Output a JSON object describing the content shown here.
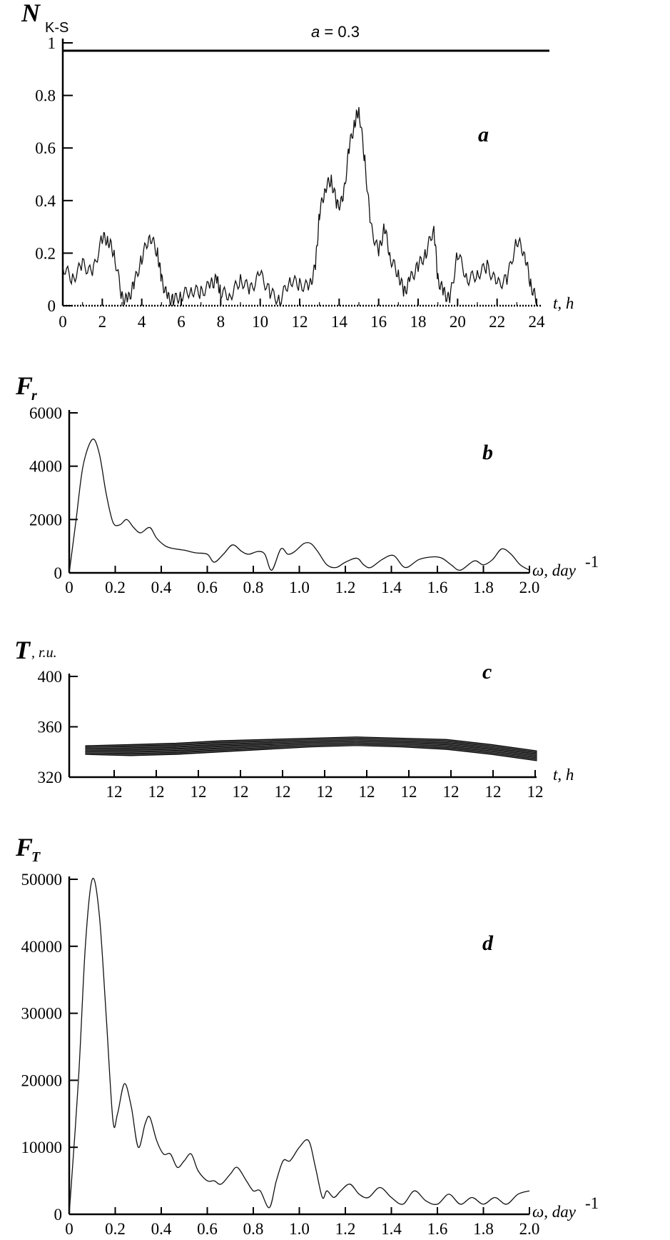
{
  "chart_data": [
    {
      "panel": "a",
      "type": "line",
      "ylabel": "N",
      "ylabel_sub": "K-S",
      "xlabel": "t, h",
      "annotation": "a = 0.3",
      "annotation_value": 0.97,
      "xlim": [
        0,
        24
      ],
      "ylim": [
        0,
        1
      ],
      "xticks": [
        "0",
        "2",
        "4",
        "6",
        "8",
        "10",
        "12",
        "14",
        "16",
        "18",
        "20",
        "22",
        "24"
      ],
      "yticks": [
        "0",
        "0.2",
        "0.4",
        "0.6",
        "0.8",
        "1"
      ],
      "x": [
        0,
        0.5,
        1,
        1.5,
        2,
        2.3,
        2.6,
        3,
        3.3,
        3.6,
        4,
        4.4,
        4.8,
        5,
        5.3,
        5.6,
        6,
        6.5,
        7,
        7.5,
        7.8,
        8,
        8.5,
        9,
        9.5,
        10,
        10.5,
        11,
        11.5,
        12,
        12.5,
        12.8,
        13,
        13.3,
        13.6,
        13.9,
        14.2,
        14.5,
        14.8,
        15,
        15.3,
        15.6,
        16,
        16.3,
        16.6,
        17,
        17.3,
        17.6,
        18,
        18.4,
        18.8,
        19,
        19.3,
        19.6,
        20,
        20.5,
        21,
        21.5,
        22,
        22.5,
        23,
        23.4,
        23.7,
        24
      ],
      "y": [
        0.15,
        0.1,
        0.16,
        0.12,
        0.26,
        0.25,
        0.2,
        0.03,
        0.02,
        0.08,
        0.18,
        0.27,
        0.2,
        0.1,
        0.03,
        0.02,
        0.04,
        0.06,
        0.05,
        0.08,
        0.1,
        0.05,
        0.04,
        0.1,
        0.06,
        0.12,
        0.05,
        0.02,
        0.1,
        0.08,
        0.07,
        0.15,
        0.35,
        0.45,
        0.48,
        0.38,
        0.4,
        0.6,
        0.7,
        0.75,
        0.55,
        0.3,
        0.2,
        0.3,
        0.18,
        0.12,
        0.05,
        0.1,
        0.15,
        0.2,
        0.3,
        0.1,
        0.05,
        0.02,
        0.2,
        0.1,
        0.12,
        0.15,
        0.08,
        0.1,
        0.25,
        0.2,
        0.08,
        0.02
      ]
    },
    {
      "panel": "b",
      "type": "line",
      "ylabel": "F",
      "ylabel_sub": "r",
      "xlabel": "ω, day",
      "xlabel_sup": "-1",
      "xlim": [
        0,
        2
      ],
      "ylim": [
        0,
        6000
      ],
      "xticks": [
        "0",
        "0.2",
        "0.4",
        "0.6",
        "0.8",
        "1.0",
        "1.2",
        "1.4",
        "1.6",
        "1.8",
        "2.0"
      ],
      "yticks": [
        "0",
        "2000",
        "4000",
        "6000"
      ],
      "x": [
        0,
        0.03,
        0.06,
        0.1,
        0.13,
        0.16,
        0.19,
        0.22,
        0.25,
        0.28,
        0.31,
        0.35,
        0.38,
        0.42,
        0.46,
        0.5,
        0.55,
        0.6,
        0.63,
        0.67,
        0.71,
        0.75,
        0.78,
        0.82,
        0.85,
        0.88,
        0.92,
        0.95,
        0.98,
        1.02,
        1.05,
        1.08,
        1.12,
        1.16,
        1.2,
        1.25,
        1.28,
        1.31,
        1.36,
        1.41,
        1.46,
        1.52,
        1.58,
        1.62,
        1.66,
        1.7,
        1.76,
        1.8,
        1.84,
        1.88,
        1.92,
        1.96,
        2.0
      ],
      "y": [
        0,
        2000,
        4000,
        5000,
        4500,
        3000,
        1900,
        1800,
        2000,
        1700,
        1500,
        1700,
        1300,
        1000,
        900,
        850,
        750,
        700,
        400,
        700,
        1050,
        800,
        700,
        800,
        700,
        100,
        900,
        700,
        800,
        1100,
        1100,
        800,
        300,
        200,
        400,
        550,
        300,
        200,
        500,
        650,
        200,
        500,
        600,
        550,
        300,
        100,
        450,
        300,
        500,
        900,
        700,
        300,
        100
      ]
    },
    {
      "panel": "c",
      "type": "area",
      "ylabel": "T",
      "ylabel_sub": ", r.u.",
      "xlabel": "t, h",
      "ylim": [
        320,
        400
      ],
      "xticks": [
        "12",
        "12",
        "12",
        "12",
        "12",
        "12",
        "12",
        "12",
        "12",
        "12",
        "12"
      ],
      "yticks": [
        "320",
        "360",
        "400"
      ],
      "x": [
        0,
        0.1,
        0.2,
        0.3,
        0.4,
        0.5,
        0.6,
        0.7,
        0.8,
        0.9,
        1.0
      ],
      "y_upper": [
        345,
        346,
        347,
        349,
        350,
        351,
        352,
        351,
        350,
        346,
        341
      ],
      "y_lower": [
        338,
        337,
        338,
        340,
        342,
        344,
        345,
        344,
        342,
        338,
        333
      ]
    },
    {
      "panel": "d",
      "type": "line",
      "ylabel": "F",
      "ylabel_sub": "T",
      "xlabel": "ω, day",
      "xlabel_sup": "-1",
      "xlim": [
        0,
        2
      ],
      "ylim": [
        0,
        50000
      ],
      "xticks": [
        "0",
        "0.2",
        "0.4",
        "0.6",
        "0.8",
        "1.0",
        "1.2",
        "1.4",
        "1.6",
        "1.8",
        "2.0"
      ],
      "yticks": [
        "0",
        "10000",
        "20000",
        "30000",
        "40000",
        "50000"
      ],
      "x": [
        0,
        0.04,
        0.07,
        0.1,
        0.13,
        0.16,
        0.19,
        0.21,
        0.24,
        0.27,
        0.3,
        0.33,
        0.35,
        0.38,
        0.41,
        0.44,
        0.47,
        0.5,
        0.53,
        0.56,
        0.6,
        0.63,
        0.66,
        0.7,
        0.73,
        0.77,
        0.8,
        0.83,
        0.87,
        0.9,
        0.93,
        0.96,
        1.0,
        1.04,
        1.07,
        1.1,
        1.12,
        1.15,
        1.18,
        1.22,
        1.26,
        1.3,
        1.35,
        1.4,
        1.45,
        1.5,
        1.55,
        1.6,
        1.65,
        1.7,
        1.75,
        1.8,
        1.85,
        1.9,
        1.95,
        2.0
      ],
      "y": [
        0,
        20000,
        40000,
        50000,
        45000,
        30000,
        14000,
        15000,
        19500,
        16000,
        10000,
        13500,
        14500,
        11000,
        9000,
        9000,
        7000,
        8000,
        9000,
        6500,
        5000,
        5000,
        4500,
        6000,
        7000,
        5000,
        3500,
        3500,
        1000,
        5000,
        8000,
        8000,
        10000,
        11000,
        7000,
        2500,
        3500,
        2500,
        3500,
        4500,
        3000,
        2500,
        4000,
        2500,
        1500,
        3500,
        2000,
        1500,
        3000,
        1500,
        2500,
        1500,
        2500,
        1500,
        3000,
        3500
      ]
    }
  ]
}
